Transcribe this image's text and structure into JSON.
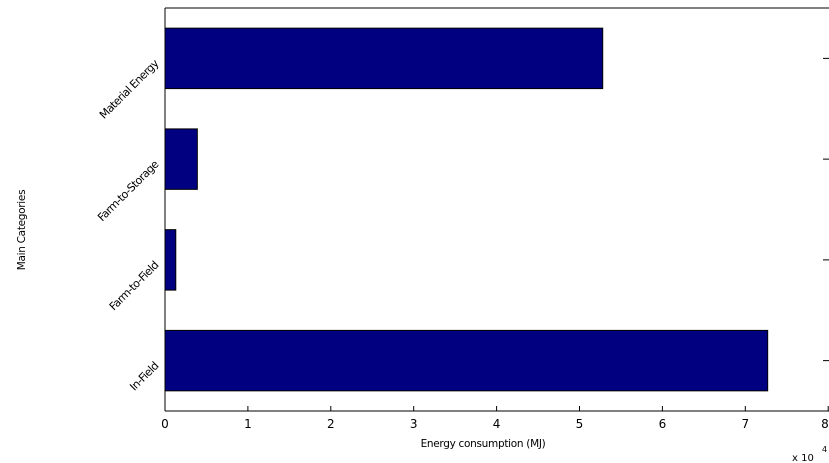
{
  "chart_data": {
    "type": "bar",
    "orientation": "horizontal",
    "categories": [
      "In-Field",
      "Farm-to-Field",
      "Farm-to-Storage",
      "Material Energy"
    ],
    "values": [
      72700,
      1300,
      3900,
      52800
    ],
    "xlabel": "Energy consumption (MJ)",
    "ylabel": "Main Categories",
    "x_ticks": [
      "0",
      "1",
      "2",
      "3",
      "4",
      "5",
      "6",
      "7",
      "8"
    ],
    "x_multiplier_label": "x 10",
    "x_multiplier_exponent": "4",
    "x_multiplier": 10000,
    "xlim": [
      0,
      80000
    ],
    "grid": false,
    "bar_color": "#000080"
  }
}
